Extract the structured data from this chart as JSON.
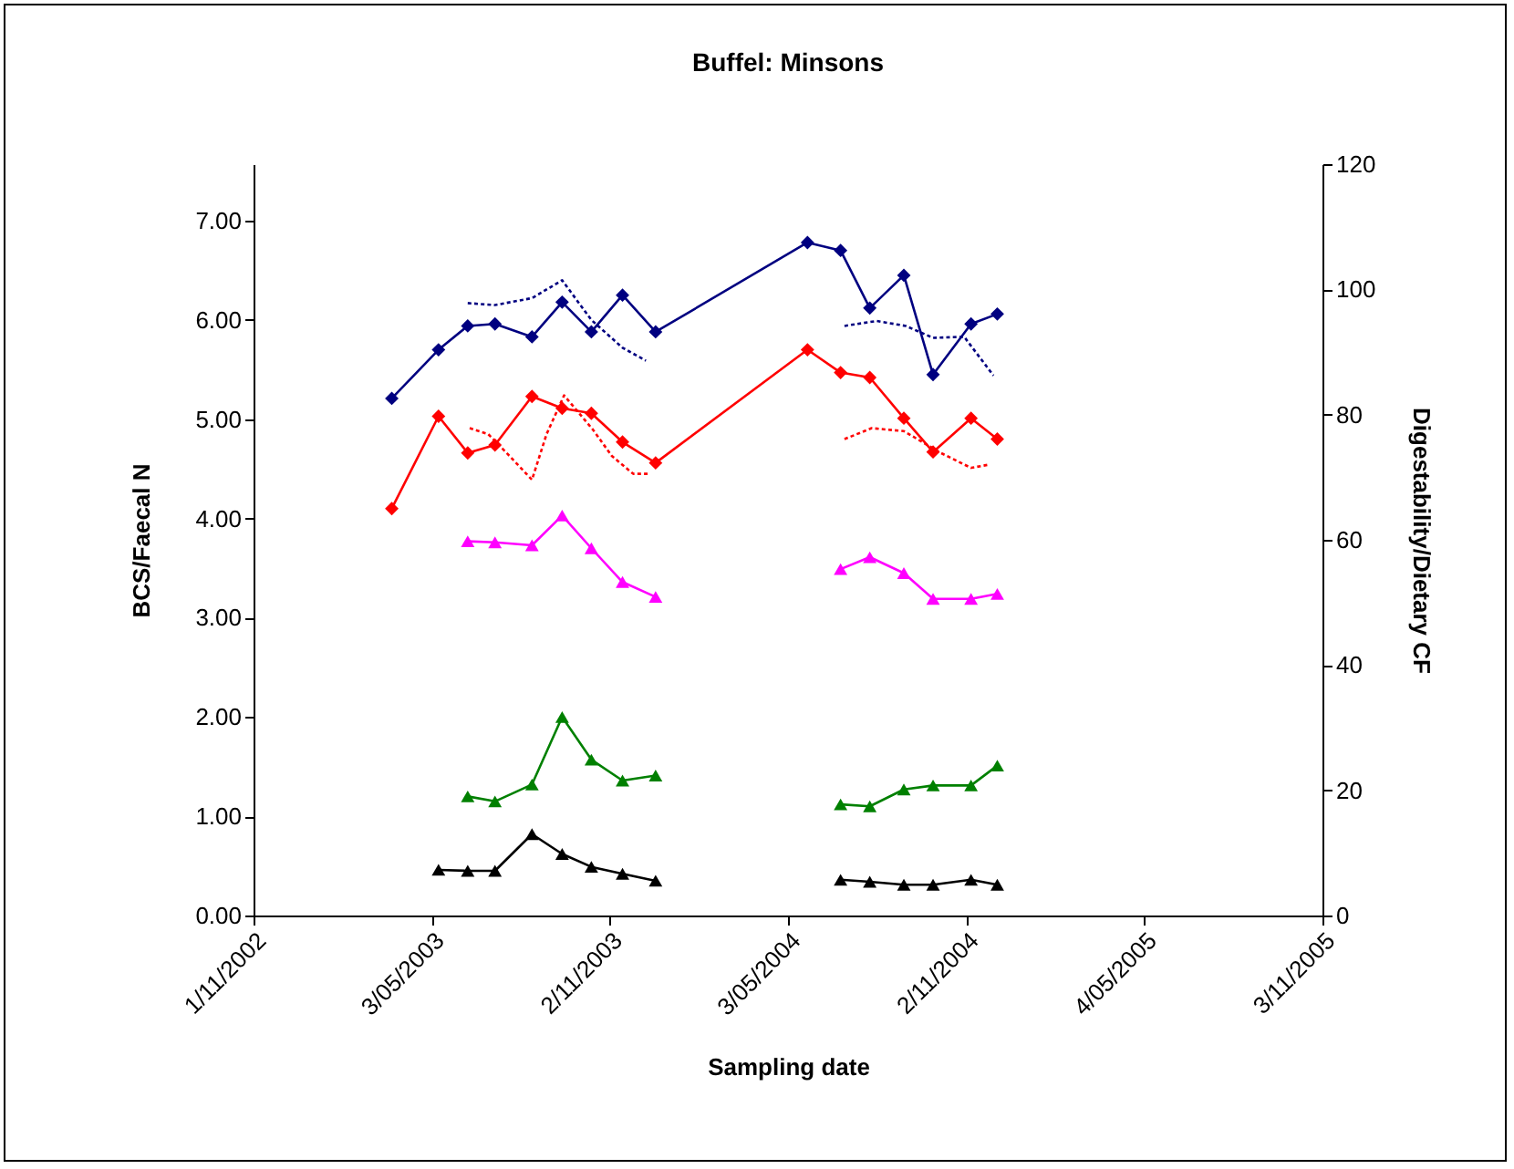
{
  "chart_data": {
    "type": "line",
    "title": "Buffel: Minsons",
    "xlabel": "Sampling date",
    "ylabel": "BCS/Faecal N",
    "y2label": "Digestability/Dietary CF",
    "xlim": [
      "2002-11-01",
      "2005-11-03"
    ],
    "xticks": [
      {
        "value": "2002-11-01",
        "label": "1/11/2002"
      },
      {
        "value": "2003-05-03",
        "label": "3/05/2003"
      },
      {
        "value": "2003-11-02",
        "label": "2/11/2003"
      },
      {
        "value": "2004-05-03",
        "label": "3/05/2004"
      },
      {
        "value": "2004-11-02",
        "label": "2/11/2004"
      },
      {
        "value": "2005-05-04",
        "label": "4/05/2005"
      },
      {
        "value": "2005-11-03",
        "label": "3/11/2005"
      }
    ],
    "ylim": [
      0,
      7.57
    ],
    "yticks": [
      {
        "value": 0,
        "label": "0.00"
      },
      {
        "value": 1,
        "label": "1.00"
      },
      {
        "value": 2,
        "label": "2.00"
      },
      {
        "value": 3,
        "label": "3.00"
      },
      {
        "value": 4,
        "label": "4.00"
      },
      {
        "value": 5,
        "label": "5.00"
      },
      {
        "value": 6,
        "label": "6.00"
      },
      {
        "value": 7,
        "label": "7.00"
      }
    ],
    "y2lim": [
      0,
      120
    ],
    "y2ticks": [
      0,
      20,
      40,
      60,
      80,
      100,
      120
    ],
    "grid": false,
    "series": [
      {
        "color": "#000080",
        "marker": "diamond",
        "line_style": "solid",
        "x": [
          "2003-03-23",
          "2003-05-10",
          "2003-06-09",
          "2003-07-07",
          "2003-08-14",
          "2003-09-14",
          "2003-10-14",
          "2003-11-15",
          "2003-12-19",
          "2004-05-23",
          "2004-06-26",
          "2004-07-26",
          "2004-08-30",
          "2004-09-29",
          "2004-11-07",
          "2004-12-04"
        ],
        "values": [
          5.21,
          5.7,
          5.94,
          5.96,
          5.83,
          6.18,
          5.88,
          6.25,
          5.88,
          6.78,
          6.7,
          6.12,
          6.45,
          5.45,
          5.96,
          6.06
        ]
      },
      {
        "color": "#ff0000",
        "marker": "diamond",
        "line_style": "solid",
        "x": [
          "2003-03-23",
          "2003-05-10",
          "2003-06-09",
          "2003-07-07",
          "2003-08-14",
          "2003-09-14",
          "2003-10-14",
          "2003-11-15",
          "2003-12-19",
          "2004-05-23",
          "2004-06-26",
          "2004-07-26",
          "2004-08-30",
          "2004-09-29",
          "2004-11-07",
          "2004-12-04"
        ],
        "values": [
          4.1,
          5.03,
          4.66,
          4.74,
          5.23,
          5.11,
          5.06,
          4.77,
          4.56,
          5.7,
          5.47,
          5.42,
          5.01,
          4.67,
          5.01,
          4.8
        ]
      },
      {
        "color": "#ff00ff",
        "marker": "triangle",
        "line_style": "solid",
        "x": [
          "2003-06-09",
          "2003-07-07",
          "2003-08-14",
          "2003-09-14",
          "2003-10-14",
          "2003-11-15",
          "2003-12-19",
          null,
          "2004-06-26",
          "2004-07-26",
          "2004-08-30",
          "2004-09-29",
          "2004-11-07",
          "2004-12-04"
        ],
        "values": [
          3.77,
          3.76,
          3.73,
          4.03,
          3.7,
          3.36,
          3.21,
          null,
          3.49,
          3.61,
          3.45,
          3.19,
          3.19,
          3.24
        ]
      },
      {
        "color": "#008000",
        "marker": "triangle",
        "line_style": "solid",
        "x": [
          "2003-06-09",
          "2003-07-07",
          "2003-08-14",
          "2003-09-14",
          "2003-10-14",
          "2003-11-15",
          "2003-12-19",
          null,
          "2004-06-26",
          "2004-07-26",
          "2004-08-30",
          "2004-09-29",
          "2004-11-07",
          "2004-12-04"
        ],
        "values": [
          1.2,
          1.15,
          1.32,
          2.0,
          1.57,
          1.36,
          1.41,
          null,
          1.12,
          1.1,
          1.27,
          1.31,
          1.31,
          1.51
        ]
      },
      {
        "color": "#000000",
        "marker": "triangle",
        "line_style": "solid",
        "x": [
          "2003-05-10",
          "2003-06-09",
          "2003-07-07",
          "2003-08-14",
          "2003-09-14",
          "2003-10-14",
          "2003-11-15",
          "2003-12-19",
          null,
          "2004-06-26",
          "2004-07-26",
          "2004-08-30",
          "2004-09-29",
          "2004-11-07",
          "2004-12-04"
        ],
        "values": [
          0.46,
          0.45,
          0.45,
          0.82,
          0.62,
          0.49,
          0.42,
          0.35,
          null,
          0.36,
          0.34,
          0.31,
          0.31,
          0.36,
          0.31
        ]
      },
      {
        "color": "#000080",
        "marker": "none",
        "line_style": "dotted",
        "x": [
          "2003-06-09",
          "2003-07-07",
          "2003-08-14",
          "2003-09-14",
          "2003-10-14",
          "2003-11-15",
          "2003-12-09",
          null,
          "2004-06-30",
          "2004-08-02",
          "2004-09-01",
          "2004-09-29",
          "2004-10-31",
          "2004-11-30"
        ],
        "values": [
          6.17,
          6.15,
          6.22,
          6.4,
          6.0,
          5.72,
          5.59,
          null,
          5.94,
          5.99,
          5.94,
          5.82,
          5.83,
          5.44
        ]
      },
      {
        "color": "#ff0000",
        "marker": "none",
        "line_style": "dotted",
        "x": [
          "2003-06-11",
          "2003-06-30",
          "2003-07-20",
          "2003-08-14",
          "2003-08-29",
          "2003-09-16",
          "2003-10-16",
          "2003-11-04",
          "2003-11-26",
          "2003-12-13",
          null,
          "2004-06-30",
          "2004-07-28",
          "2004-08-30",
          "2004-10-07",
          "2004-11-07",
          "2004-11-24"
        ],
        "values": [
          4.91,
          4.85,
          4.65,
          4.39,
          4.85,
          5.24,
          4.89,
          4.63,
          4.45,
          4.45,
          null,
          4.8,
          4.91,
          4.88,
          4.66,
          4.51,
          4.54
        ]
      }
    ]
  }
}
